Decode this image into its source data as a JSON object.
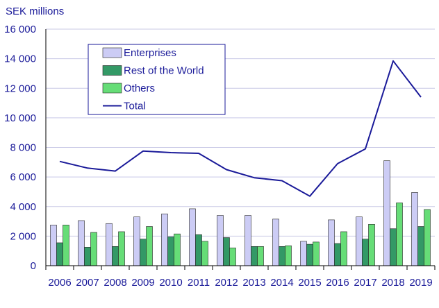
{
  "chart_data": {
    "type": "bar",
    "ylabel": "SEK millions",
    "ylim": [
      0,
      16000
    ],
    "yticks": [
      0,
      2000,
      4000,
      6000,
      8000,
      10000,
      12000,
      14000,
      16000
    ],
    "ytick_labels": [
      "0",
      "2 000",
      "4 000",
      "6 000",
      "8 000",
      "10 000",
      "12 000",
      "14 000",
      "16 000"
    ],
    "categories": [
      "2006",
      "2007",
      "2008",
      "2009",
      "2010",
      "2011",
      "2012",
      "2013",
      "2014",
      "2015",
      "2016",
      "2017",
      "2018",
      "2019"
    ],
    "series": [
      {
        "name": "Enterprises",
        "kind": "bar",
        "color": "#ccccf5",
        "values": [
          2750,
          3050,
          2850,
          3300,
          3500,
          3850,
          3400,
          3400,
          3150,
          1650,
          3100,
          3300,
          7100,
          4950
        ]
      },
      {
        "name": "Rest of the World",
        "kind": "bar",
        "color": "#339966",
        "values": [
          1550,
          1250,
          1300,
          1800,
          1950,
          2100,
          1900,
          1300,
          1300,
          1450,
          1500,
          1800,
          2500,
          2650
        ]
      },
      {
        "name": "Others",
        "kind": "bar",
        "color": "#66dd77",
        "values": [
          2750,
          2250,
          2300,
          2650,
          2150,
          1650,
          1200,
          1300,
          1350,
          1600,
          2300,
          2800,
          4250,
          3800
        ]
      },
      {
        "name": "Total",
        "kind": "line",
        "color": "#1a1a99",
        "values": [
          7050,
          6600,
          6400,
          7750,
          7650,
          7600,
          6500,
          5950,
          5750,
          4700,
          6900,
          7900,
          13850,
          11400
        ]
      }
    ],
    "grid": true,
    "legend_position": "top-left",
    "colors": {
      "axis_text": "#1a1a99",
      "grid": "#c8c8e6",
      "legend_border": "#1a1a99"
    }
  }
}
